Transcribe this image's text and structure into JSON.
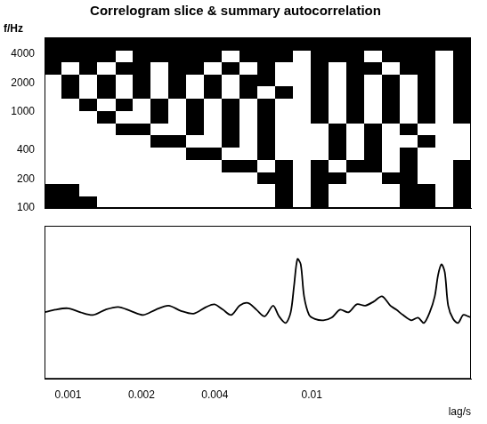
{
  "chart_data": [
    {
      "type": "heatmap",
      "title": "Correlogram slice & summary autocorrelation",
      "y_label": "f/Hz",
      "log": true,
      "grid": false,
      "tick_labels": "y",
      "xlim": [
        0.0008,
        0.045
      ],
      "ylim": [
        100,
        6000
      ],
      "yticks": [
        100,
        200,
        400,
        1000,
        2000,
        4000
      ],
      "x_bins": [
        0.0008,
        0.000946,
        0.00112,
        0.00132,
        0.00157,
        0.00185,
        0.00219,
        0.00259,
        0.00307,
        0.00363,
        0.00429,
        0.00508,
        0.00601,
        0.00711,
        0.00841,
        0.00995,
        0.0118,
        0.0139,
        0.0165,
        0.0195,
        0.0231,
        0.0273,
        0.0323,
        0.0382,
        0.045
      ],
      "y_bins": [
        100,
        134,
        180,
        241,
        323,
        433,
        580,
        777,
        1041,
        1395,
        1870,
        2505,
        3357,
        4499,
        6000
      ],
      "color_range": [
        0,
        1
      ],
      "cells": [
        [
          0,
          0,
          0,
          1,
          1,
          1,
          1,
          1,
          1,
          1,
          1,
          1,
          1,
          0,
          1,
          0,
          1,
          1,
          1,
          1,
          0,
          0,
          1,
          0
        ],
        [
          0,
          0,
          1,
          1,
          1,
          1,
          1,
          1,
          1,
          1,
          1,
          1,
          1,
          0,
          1,
          0,
          1,
          1,
          1,
          1,
          0,
          0,
          1,
          0
        ],
        [
          1,
          1,
          1,
          1,
          1,
          1,
          1,
          1,
          1,
          1,
          1,
          1,
          0,
          0,
          1,
          0,
          0,
          1,
          1,
          0,
          0,
          1,
          1,
          0
        ],
        [
          1,
          1,
          1,
          1,
          1,
          1,
          1,
          1,
          1,
          1,
          0,
          0,
          1,
          0,
          1,
          0,
          1,
          0,
          0,
          1,
          0,
          1,
          1,
          0
        ],
        [
          1,
          1,
          1,
          1,
          1,
          1,
          1,
          1,
          0,
          0,
          1,
          1,
          0,
          1,
          1,
          1,
          0,
          1,
          0,
          1,
          0,
          1,
          1,
          1
        ],
        [
          1,
          1,
          1,
          1,
          1,
          1,
          0,
          0,
          1,
          1,
          0,
          1,
          0,
          1,
          1,
          1,
          0,
          1,
          0,
          1,
          1,
          0,
          1,
          1
        ],
        [
          1,
          1,
          1,
          1,
          0,
          0,
          1,
          1,
          0,
          1,
          0,
          1,
          0,
          1,
          1,
          1,
          0,
          1,
          0,
          1,
          0,
          1,
          1,
          1
        ],
        [
          1,
          1,
          1,
          0,
          1,
          1,
          0,
          1,
          0,
          1,
          0,
          1,
          0,
          1,
          1,
          0,
          1,
          0,
          1,
          0,
          1,
          0,
          1,
          0
        ],
        [
          1,
          1,
          0,
          1,
          0,
          1,
          0,
          1,
          0,
          1,
          0,
          1,
          0,
          1,
          1,
          0,
          1,
          0,
          1,
          0,
          1,
          0,
          1,
          0
        ],
        [
          1,
          0,
          1,
          0,
          1,
          0,
          1,
          0,
          1,
          0,
          1,
          0,
          1,
          0,
          1,
          0,
          1,
          0,
          1,
          0,
          1,
          0,
          1,
          0
        ],
        [
          1,
          0,
          1,
          0,
          1,
          0,
          1,
          0,
          1,
          0,
          1,
          0,
          0,
          1,
          1,
          0,
          1,
          0,
          1,
          0,
          1,
          0,
          1,
          0
        ],
        [
          0,
          1,
          0,
          1,
          0,
          0,
          1,
          0,
          0,
          1,
          0,
          1,
          0,
          1,
          1,
          0,
          1,
          0,
          0,
          1,
          0,
          0,
          1,
          0
        ],
        [
          0,
          0,
          0,
          0,
          1,
          0,
          0,
          0,
          0,
          0,
          1,
          0,
          0,
          0,
          1,
          0,
          0,
          0,
          1,
          0,
          0,
          0,
          1,
          0
        ],
        [
          0,
          0,
          0,
          0,
          0,
          0,
          0,
          0,
          0,
          0,
          0,
          0,
          0,
          0,
          0,
          0,
          0,
          0,
          0,
          0,
          0,
          0,
          0,
          0
        ]
      ]
    },
    {
      "type": "line",
      "x_label": "lag/s",
      "log": "x",
      "grid": false,
      "tick_labels": "x",
      "color": "#000000",
      "xlim": [
        0.0008,
        0.045
      ],
      "ylim": [
        0,
        1.15
      ],
      "xticks": [
        0.001,
        0.002,
        0.004,
        0.01
      ],
      "x": [
        0.0008,
        0.000886,
        0.000999,
        0.001124,
        0.001266,
        0.001425,
        0.001605,
        0.001807,
        0.002035,
        0.002291,
        0.002581,
        0.002906,
        0.003272,
        0.003684,
        0.003988,
        0.004316,
        0.004672,
        0.005056,
        0.005473,
        0.005923,
        0.006411,
        0.006938,
        0.007334,
        0.007813,
        0.008192,
        0.008456,
        0.008728,
        0.009008,
        0.009296,
        0.009752,
        0.0103,
        0.01115,
        0.01207,
        0.01306,
        0.01414,
        0.0153,
        0.01657,
        0.01793,
        0.01941,
        0.02101,
        0.02221,
        0.02366,
        0.0256,
        0.02728,
        0.02883,
        0.03047,
        0.03196,
        0.03298,
        0.03405,
        0.03514,
        0.03628,
        0.03802,
        0.03987,
        0.0418,
        0.04384,
        0.045
      ],
      "values": [
        0.5,
        0.52,
        0.53,
        0.5,
        0.48,
        0.52,
        0.54,
        0.51,
        0.48,
        0.52,
        0.55,
        0.51,
        0.49,
        0.54,
        0.56,
        0.52,
        0.48,
        0.55,
        0.57,
        0.52,
        0.47,
        0.55,
        0.47,
        0.42,
        0.5,
        0.7,
        0.9,
        0.86,
        0.62,
        0.48,
        0.45,
        0.44,
        0.46,
        0.52,
        0.5,
        0.56,
        0.55,
        0.58,
        0.62,
        0.55,
        0.52,
        0.48,
        0.44,
        0.46,
        0.42,
        0.5,
        0.62,
        0.78,
        0.86,
        0.8,
        0.55,
        0.45,
        0.42,
        0.48,
        0.47,
        0.46
      ]
    }
  ]
}
